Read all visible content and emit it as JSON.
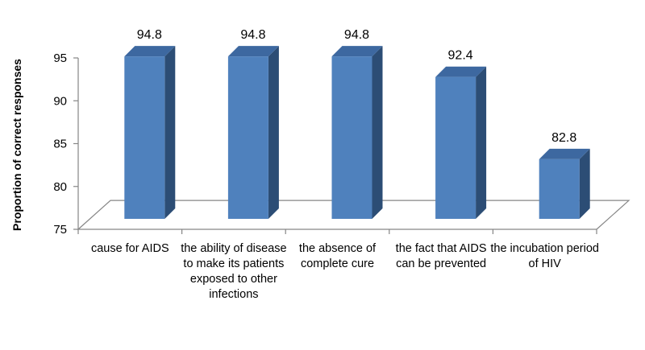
{
  "chart_data": {
    "type": "bar",
    "categories": [
      "cause for AIDS",
      "the ability of disease to make its patients exposed to other infections",
      "the absence of complete cure",
      "the fact that AIDS can be prevented",
      "the incubation period of HIV"
    ],
    "values": [
      94.8,
      94.8,
      94.8,
      92.4,
      82.8
    ],
    "data_labels": [
      "94.8",
      "94.8",
      "94.8",
      "92.4",
      "82.8"
    ],
    "ylabel": "Proportion of correct responses",
    "ylim": [
      75,
      95
    ],
    "yticks": [
      "75",
      "80",
      "85",
      "90",
      "95"
    ],
    "grid": false,
    "bar_style": "3d",
    "colors": {
      "front": "#4F81BD",
      "side": "#2C4D75",
      "top": "#3D68A0",
      "floor": "#FFFFFF",
      "axis": "#868686"
    }
  }
}
